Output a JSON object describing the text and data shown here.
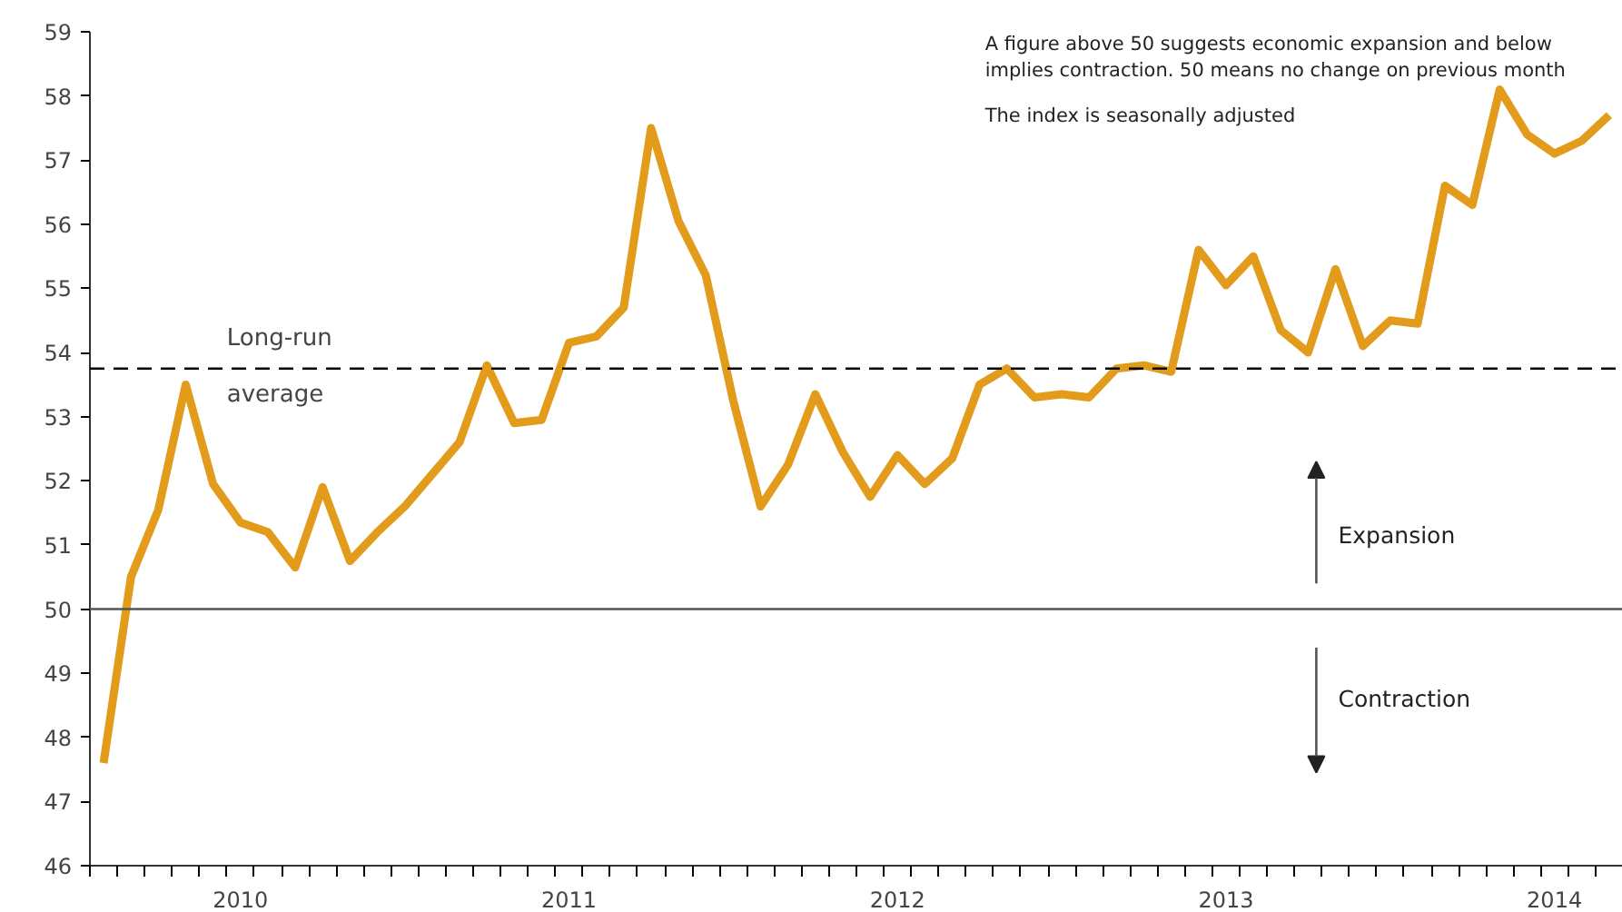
{
  "chart_data": {
    "type": "line",
    "categories": [
      null,
      null,
      null,
      null,
      null,
      "2010",
      null,
      null,
      null,
      null,
      null,
      null,
      null,
      null,
      null,
      null,
      null,
      "2011",
      null,
      null,
      null,
      null,
      null,
      null,
      null,
      null,
      null,
      null,
      null,
      "2012",
      null,
      null,
      null,
      null,
      null,
      null,
      null,
      null,
      null,
      null,
      null,
      "2013",
      null,
      null,
      null,
      null,
      null,
      null,
      null,
      null,
      null,
      null,
      null,
      "2014",
      null,
      null
    ],
    "series": [
      {
        "color": "#e39b1c",
        "values": [
          47.6,
          50.5,
          51.55,
          53.5,
          51.95,
          51.35,
          51.2,
          50.65,
          51.9,
          50.75,
          51.2,
          51.6,
          52.1,
          52.6,
          53.8,
          52.9,
          52.95,
          54.15,
          54.25,
          54.7,
          57.5,
          56.05,
          55.2,
          53.25,
          51.6,
          52.25,
          53.35,
          52.45,
          51.75,
          52.4,
          51.95,
          52.35,
          53.5,
          53.75,
          53.3,
          53.35,
          53.3,
          53.75,
          53.8,
          53.7,
          55.6,
          55.05,
          55.5,
          54.35,
          54.0,
          55.3,
          54.1,
          54.5,
          54.45,
          56.6,
          56.3,
          58.1,
          57.4,
          57.1,
          57.3,
          57.7
        ]
      }
    ],
    "ylim": [
      46,
      59
    ],
    "yticks": [
      46,
      47,
      48,
      49,
      50,
      51,
      52,
      53,
      54,
      55,
      56,
      57,
      58,
      59
    ],
    "grid": false,
    "marker": "none",
    "line_style": "solid",
    "ref_lines": [
      {
        "axis": "y",
        "value": 50,
        "color": "#555555",
        "line_style": "solid"
      },
      {
        "axis": "y",
        "value": 53.75,
        "label": "Long-run average",
        "color": "#000000",
        "line_style": "dashed"
      }
    ],
    "annotations": [
      "A figure above 50 suggests economic expansion and below\nimplies contraction. 50 means no change on previous month",
      "The index is seasonally adjusted",
      "Expansion",
      "Contraction"
    ]
  }
}
